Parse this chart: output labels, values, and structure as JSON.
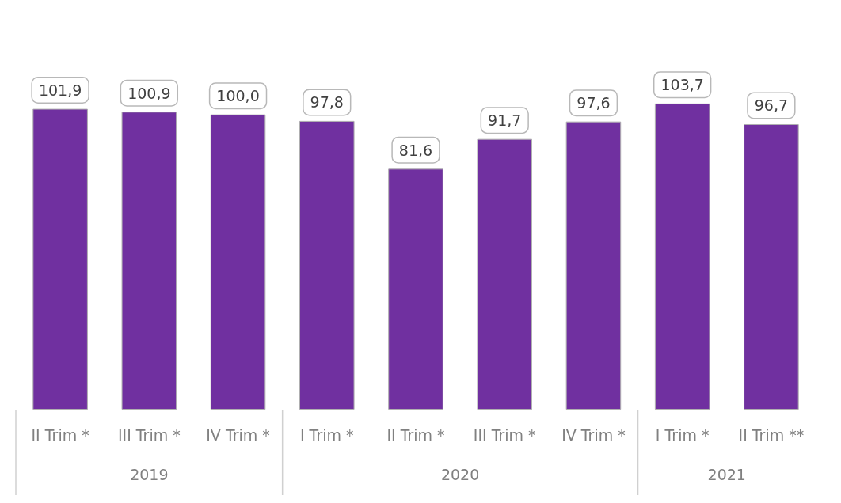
{
  "chart_data": {
    "type": "bar",
    "categories": [
      "II Trim *",
      "III Trim *",
      "IV Trim *",
      "I Trim *",
      "II Trim *",
      "III Trim *",
      "IV Trim *",
      "I Trim *",
      "II Trim **"
    ],
    "values": [
      101.9,
      100.9,
      100.0,
      97.8,
      81.6,
      91.7,
      97.6,
      103.7,
      96.7
    ],
    "value_labels": [
      "101,9",
      "100,9",
      "100,0",
      "97,8",
      "81,6",
      "91,7",
      "97,6",
      "103,7",
      "96,7"
    ],
    "color": "#7030a0",
    "annotations": [
      "2019",
      "2020",
      "2021"
    ]
  }
}
